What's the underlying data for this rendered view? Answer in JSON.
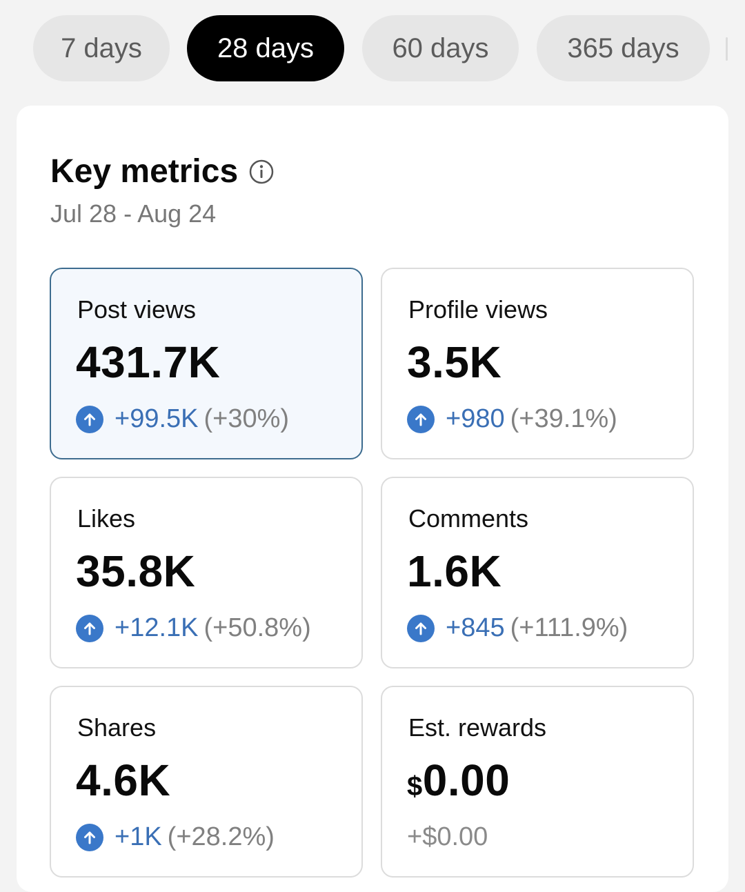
{
  "tabs": [
    {
      "label": "7 days",
      "active": false
    },
    {
      "label": "28 days",
      "active": true
    },
    {
      "label": "60 days",
      "active": false
    },
    {
      "label": "365 days",
      "active": false
    }
  ],
  "panel": {
    "title": "Key metrics",
    "date_range": "Jul 28 - Aug 24"
  },
  "metrics": [
    {
      "label": "Post views",
      "value": "431.7K",
      "delta": "+99.5K",
      "pct": "(+30%)"
    },
    {
      "label": "Profile views",
      "value": "3.5K",
      "delta": "+980",
      "pct": "(+39.1%)"
    },
    {
      "label": "Likes",
      "value": "35.8K",
      "delta": "+12.1K",
      "pct": "(+50.8%)"
    },
    {
      "label": "Comments",
      "value": "1.6K",
      "delta": "+845",
      "pct": "(+111.9%)"
    },
    {
      "label": "Shares",
      "value": "4.6K",
      "delta": "+1K",
      "pct": "(+28.2%)"
    },
    {
      "label": "Est. rewards",
      "currency": "$",
      "value": "0.00",
      "delta": "+$0.00"
    }
  ],
  "colors": {
    "accent_blue": "#3a78c9",
    "selected_border": "#3d6c8f",
    "active_tab": "#000000"
  }
}
